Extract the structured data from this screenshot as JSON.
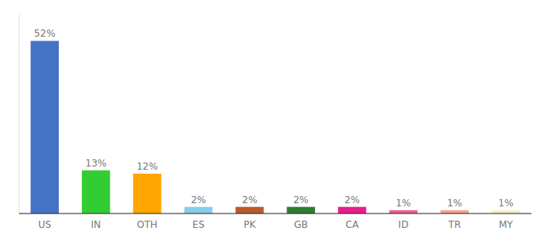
{
  "chart_data": {
    "type": "bar",
    "categories": [
      "US",
      "IN",
      "OTH",
      "ES",
      "PK",
      "GB",
      "CA",
      "ID",
      "TR",
      "MY"
    ],
    "values": [
      52,
      13,
      12,
      2,
      2,
      2,
      2,
      1,
      1,
      1
    ],
    "value_labels": [
      "52%",
      "13%",
      "12%",
      "2%",
      "2%",
      "2%",
      "2%",
      "1%",
      "1%",
      "1%"
    ],
    "colors": [
      "#4472C4",
      "#33CC33",
      "#FFA500",
      "#87CEEB",
      "#B85C2A",
      "#2E7D32",
      "#E91E8C",
      "#F06090",
      "#F4A090",
      "#F5F0C8"
    ],
    "ylim": [
      0,
      60
    ],
    "data_labels": true,
    "tick_labels": "x",
    "grid": false
  }
}
